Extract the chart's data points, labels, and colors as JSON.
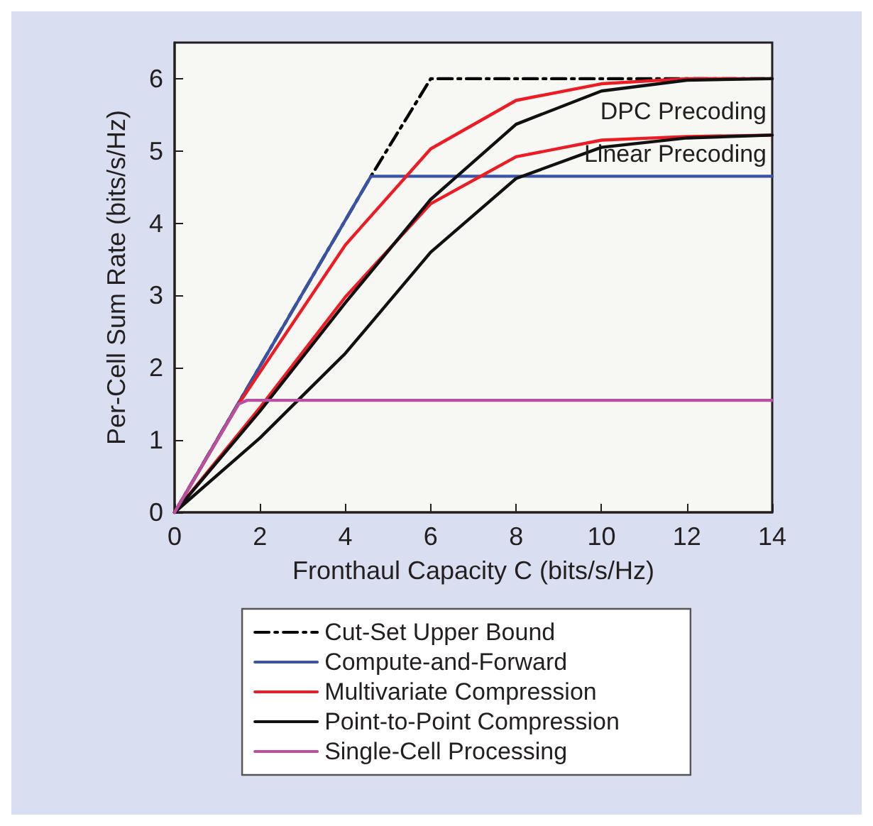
{
  "chart_data": {
    "type": "line",
    "xlabel": "Fronthaul Capacity C (bits/s/Hz)",
    "ylabel": "Per-Cell Sum Rate (bits/s/Hz)",
    "xlim": [
      0,
      14
    ],
    "xticks": [
      0,
      2,
      4,
      6,
      8,
      10,
      12,
      14
    ],
    "ylim": [
      0,
      6.5
    ],
    "yticks": [
      0,
      1,
      2,
      3,
      4,
      5,
      6
    ],
    "grid": false,
    "legend": "bottom",
    "marker": "none",
    "annotations": [
      "DPC Precoding",
      "Linear Precoding"
    ],
    "series": [
      {
        "name": "Cut-Set Upper Bound",
        "color": "#000000",
        "line_style": "dashed",
        "x": [
          0,
          4.6,
          6,
          14
        ],
        "values": [
          0,
          4.65,
          6,
          6
        ]
      },
      {
        "name": "Compute-and-Forward",
        "color": "#3a53a4",
        "x": [
          0,
          4.6,
          14
        ],
        "values": [
          0,
          4.65,
          4.65
        ]
      },
      {
        "name": "Multivariate Compression",
        "color": "#ed1c24",
        "x": [
          0,
          1.5,
          4,
          6,
          8,
          10,
          12,
          14
        ],
        "values": [
          0,
          1.5,
          3.7,
          5.03,
          5.7,
          5.93,
          6.0,
          6.0
        ]
      },
      {
        "color": "#ed1c24",
        "x": [
          0,
          2,
          4,
          6,
          8,
          10,
          12,
          14
        ],
        "values": [
          0,
          1.45,
          2.98,
          4.27,
          4.92,
          5.15,
          5.2,
          5.22
        ]
      },
      {
        "name": "Point-to-Point Compression",
        "color": "#111111",
        "x": [
          0,
          2,
          4,
          6,
          8,
          10,
          12,
          14
        ],
        "values": [
          0,
          1.4,
          2.9,
          4.33,
          5.37,
          5.83,
          5.98,
          6.0
        ]
      },
      {
        "color": "#111111",
        "x": [
          0,
          2,
          4,
          6,
          8,
          10,
          12,
          14
        ],
        "values": [
          0,
          1.03,
          2.2,
          3.6,
          4.62,
          5.05,
          5.18,
          5.22
        ]
      },
      {
        "name": "Single-Cell Processing",
        "color": "#b94fa0",
        "x": [
          0,
          1.5,
          1.7,
          14
        ],
        "values": [
          0,
          1.5,
          1.55,
          1.55
        ]
      }
    ]
  }
}
